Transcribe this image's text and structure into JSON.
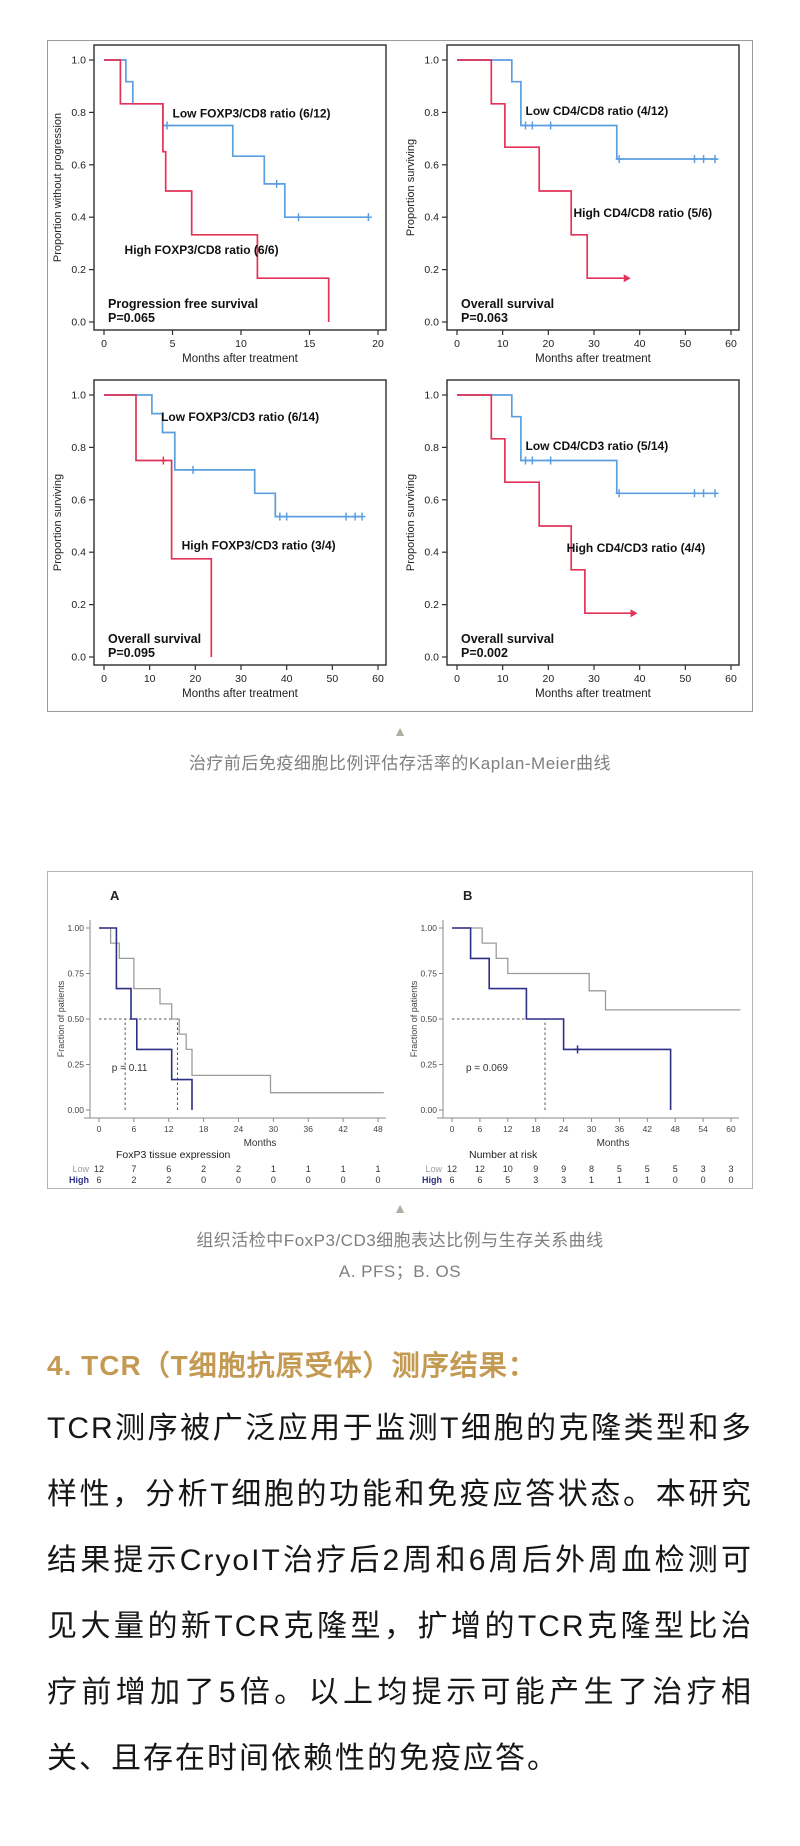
{
  "colors": {
    "blue": "#5b9fe0",
    "red": "#e23358",
    "navy": "#2d2f86",
    "gray": "#9c9c9c",
    "accent_gold": "#c49a53",
    "caption_gray": "#7f7f7f"
  },
  "icons": {
    "figure_marker": "▲"
  },
  "figure1": {
    "caption": "治疗前后免疫细胞比例评估存活率的Kaplan-Meier曲线"
  },
  "figure2": {
    "caption_line1": "组织活检中FoxP3/CD3细胞表达比例与生存关系曲线",
    "caption_line2": "A. PFS；B. OS"
  },
  "section": {
    "heading": "4. TCR（T细胞抗原受体）测序结果：",
    "paragraph": "TCR测序被广泛应用于监测T细胞的克隆类型和多样性，分析T细胞的功能和免疫应答状态。本研究结果提示CryoIT治疗后2周和6周后外周血检测可见大量的新TCR克隆型，扩增的TCR克隆型比治疗前增加了5倍。以上均提示可能产生了治疗相关、且存在时间依赖性的免疫应答。"
  },
  "chart_data": [
    {
      "id": "pfs-foxp3-cd8",
      "figure": 1,
      "type": "line",
      "ylabel": "Proportion without progression",
      "xlabel": "Months after treatment",
      "xmax": 21,
      "xticks": [
        0,
        5,
        10,
        15,
        20
      ],
      "yticks": [
        1.0,
        0.8,
        0.6,
        0.4,
        0.2,
        0.0
      ],
      "ydec": 1,
      "note": [
        "Progression free survival",
        "P=0.065"
      ],
      "series": [
        {
          "label": "Low FOXP3/CD8 ratio (6/12)",
          "color": "blue",
          "label_at": [
            5.0,
            0.78
          ],
          "steps": [
            [
              0,
              1
            ],
            [
              1.6,
              1
            ],
            [
              1.6,
              0.917
            ],
            [
              2.1,
              0.917
            ],
            [
              2.1,
              0.833
            ],
            [
              4.3,
              0.833
            ],
            [
              4.3,
              0.75
            ],
            [
              9.4,
              0.75
            ],
            [
              9.4,
              0.633
            ],
            [
              11.7,
              0.633
            ],
            [
              11.7,
              0.527
            ],
            [
              13.2,
              0.527
            ],
            [
              13.2,
              0.4
            ],
            [
              19.3,
              0.4
            ]
          ],
          "censors": [
            [
              4.6,
              0.75
            ],
            [
              12.6,
              0.527
            ],
            [
              14.2,
              0.4
            ],
            [
              19.3,
              0.4
            ]
          ]
        },
        {
          "label": "High FOXP3/CD8 ratio (6/6)",
          "color": "red",
          "label_at": [
            1.5,
            0.26
          ],
          "steps": [
            [
              0,
              1
            ],
            [
              1.2,
              1
            ],
            [
              1.2,
              0.833
            ],
            [
              4.3,
              0.833
            ],
            [
              4.3,
              0.65
            ],
            [
              4.5,
              0.65
            ],
            [
              4.5,
              0.5
            ],
            [
              6.4,
              0.5
            ],
            [
              6.4,
              0.333
            ],
            [
              11.2,
              0.333
            ],
            [
              11.2,
              0.167
            ],
            [
              16.4,
              0.167
            ],
            [
              16.4,
              0
            ]
          ],
          "censors": []
        }
      ]
    },
    {
      "id": "os-cd4-cd8",
      "figure": 1,
      "type": "line",
      "ylabel": "Proportion surviving",
      "xlabel": "Months after treatment",
      "xmax": 62,
      "xticks": [
        0,
        10,
        20,
        30,
        40,
        50,
        60
      ],
      "yticks": [
        1.0,
        0.8,
        0.6,
        0.4,
        0.2,
        0.0
      ],
      "ydec": 1,
      "note": [
        "Overall survival",
        "P=0.063"
      ],
      "series": [
        {
          "label": "Low CD4/CD8 ratio (4/12)",
          "color": "blue",
          "label_at": [
            15.0,
            0.79
          ],
          "steps": [
            [
              0,
              1
            ],
            [
              12,
              1
            ],
            [
              12,
              0.917
            ],
            [
              14,
              0.917
            ],
            [
              14,
              0.75
            ],
            [
              35,
              0.75
            ],
            [
              35,
              0.622
            ],
            [
              57,
              0.622
            ]
          ],
          "censors": [
            [
              15,
              0.75
            ],
            [
              16.5,
              0.75
            ],
            [
              20.5,
              0.75
            ],
            [
              35.5,
              0.622
            ],
            [
              52,
              0.622
            ],
            [
              54,
              0.622
            ],
            [
              56.5,
              0.622
            ]
          ]
        },
        {
          "label": "High CD4/CD8 ratio (5/6)",
          "color": "red",
          "label_at": [
            25.5,
            0.4
          ],
          "steps": [
            [
              0,
              1
            ],
            [
              7.5,
              1
            ],
            [
              7.5,
              0.833
            ],
            [
              10.5,
              0.833
            ],
            [
              10.5,
              0.667
            ],
            [
              18,
              0.667
            ],
            [
              18,
              0.5
            ],
            [
              25,
              0.5
            ],
            [
              25,
              0.333
            ],
            [
              28.5,
              0.333
            ],
            [
              28.5,
              0.167
            ],
            [
              36.5,
              0.167
            ]
          ],
          "censors": [],
          "end_arrow": true
        }
      ]
    },
    {
      "id": "os-foxp3-cd3",
      "figure": 1,
      "type": "line",
      "ylabel": "Proportion surviving",
      "xlabel": "Months after treatment",
      "xmax": 62,
      "xticks": [
        0,
        10,
        20,
        30,
        40,
        50,
        60
      ],
      "yticks": [
        1.0,
        0.8,
        0.6,
        0.4,
        0.2,
        0.0
      ],
      "ydec": 1,
      "note": [
        "Overall survival",
        "P=0.095"
      ],
      "series": [
        {
          "label": "Low FOXP3/CD3 ratio (6/14)",
          "color": "blue",
          "label_at": [
            12.5,
            0.9
          ],
          "steps": [
            [
              0,
              1
            ],
            [
              10.5,
              1
            ],
            [
              10.5,
              0.929
            ],
            [
              12.8,
              0.929
            ],
            [
              12.8,
              0.857
            ],
            [
              15.5,
              0.857
            ],
            [
              15.5,
              0.714
            ],
            [
              33,
              0.714
            ],
            [
              33,
              0.625
            ],
            [
              37.5,
              0.625
            ],
            [
              37.5,
              0.536
            ],
            [
              56.5,
              0.536
            ]
          ],
          "censors": [
            [
              19.5,
              0.714
            ],
            [
              38.5,
              0.536
            ],
            [
              40,
              0.536
            ],
            [
              53,
              0.536
            ],
            [
              55,
              0.536
            ],
            [
              56.5,
              0.536
            ]
          ]
        },
        {
          "label": "High FOXP3/CD3 ratio (3/4)",
          "color": "red",
          "label_at": [
            17.0,
            0.41
          ],
          "steps": [
            [
              0,
              1
            ],
            [
              7,
              1
            ],
            [
              7,
              0.75
            ],
            [
              14.8,
              0.75
            ],
            [
              14.8,
              0.375
            ],
            [
              23.5,
              0.375
            ],
            [
              23.5,
              0
            ]
          ],
          "censors": [
            [
              13,
              0.75
            ]
          ]
        }
      ]
    },
    {
      "id": "os-cd4-cd3",
      "figure": 1,
      "type": "line",
      "ylabel": "Proportion surviving",
      "xlabel": "Months after treatment",
      "xmax": 62,
      "xticks": [
        0,
        10,
        20,
        30,
        40,
        50,
        60
      ],
      "yticks": [
        1.0,
        0.8,
        0.6,
        0.4,
        0.2,
        0.0
      ],
      "ydec": 1,
      "note": [
        "Overall survival",
        "P=0.002"
      ],
      "series": [
        {
          "label": "Low CD4/CD3 ratio (5/14)",
          "color": "blue",
          "label_at": [
            15.0,
            0.79
          ],
          "steps": [
            [
              0,
              1
            ],
            [
              12,
              1
            ],
            [
              12,
              0.917
            ],
            [
              14,
              0.917
            ],
            [
              14,
              0.75
            ],
            [
              35,
              0.75
            ],
            [
              35,
              0.625
            ],
            [
              57,
              0.625
            ]
          ],
          "censors": [
            [
              15,
              0.75
            ],
            [
              16.5,
              0.75
            ],
            [
              20.5,
              0.75
            ],
            [
              35.5,
              0.625
            ],
            [
              52,
              0.625
            ],
            [
              54,
              0.625
            ],
            [
              56.5,
              0.625
            ]
          ]
        },
        {
          "label": "High CD4/CD3 ratio (4/4)",
          "color": "red",
          "label_at": [
            24.0,
            0.4
          ],
          "steps": [
            [
              0,
              1
            ],
            [
              7.5,
              1
            ],
            [
              7.5,
              0.833
            ],
            [
              10.5,
              0.833
            ],
            [
              10.5,
              0.667
            ],
            [
              18,
              0.667
            ],
            [
              18,
              0.5
            ],
            [
              25,
              0.5
            ],
            [
              25,
              0.333
            ],
            [
              28,
              0.333
            ],
            [
              28,
              0.167
            ],
            [
              38,
              0.167
            ]
          ],
          "censors": [],
          "end_arrow": true
        }
      ]
    },
    {
      "id": "pfs-foxp3-tissue",
      "figure": 2,
      "type": "line",
      "panel_label": "A",
      "ylabel": "Fraction of patients",
      "xlabel": "Months",
      "xmax": 49,
      "xticks": [
        0,
        6,
        12,
        18,
        24,
        30,
        36,
        42,
        48
      ],
      "yticks": [
        1.0,
        0.75,
        0.5,
        0.25,
        0.0
      ],
      "ydec": 2,
      "pvalue": "p = 0.11",
      "pvalue_at": [
        2.2,
        0.215
      ],
      "dashed": [
        {
          "type": "h",
          "y": 0.5,
          "x1": 0,
          "x2": 13.5
        },
        {
          "type": "v",
          "x": 4.5,
          "y2": 0.5
        },
        {
          "type": "v",
          "x": 13.5,
          "y2": 0.5
        }
      ],
      "series": [
        {
          "label": "Low",
          "color": "gray",
          "steps": [
            [
              0,
              1
            ],
            [
              2,
              1
            ],
            [
              2,
              0.917
            ],
            [
              3.5,
              0.917
            ],
            [
              3.5,
              0.833
            ],
            [
              6,
              0.833
            ],
            [
              6,
              0.667
            ],
            [
              10.5,
              0.667
            ],
            [
              10.5,
              0.583
            ],
            [
              12.5,
              0.583
            ],
            [
              12.5,
              0.5
            ],
            [
              13.8,
              0.5
            ],
            [
              13.8,
              0.417
            ],
            [
              15,
              0.417
            ],
            [
              15,
              0.333
            ],
            [
              16,
              0.333
            ],
            [
              16,
              0.19
            ],
            [
              29.5,
              0.19
            ],
            [
              29.5,
              0.095
            ],
            [
              49,
              0.095
            ]
          ],
          "censors": []
        },
        {
          "label": "High",
          "color": "navy",
          "steps": [
            [
              0,
              1
            ],
            [
              3,
              1
            ],
            [
              3,
              0.667
            ],
            [
              5.5,
              0.667
            ],
            [
              5.5,
              0.5
            ],
            [
              6.5,
              0.5
            ],
            [
              6.5,
              0.333
            ],
            [
              12.5,
              0.333
            ],
            [
              12.5,
              0.167
            ],
            [
              16,
              0.167
            ],
            [
              16,
              0
            ]
          ],
          "censors": []
        }
      ],
      "risk_table": {
        "title": "FoxP3 tissue expression",
        "row_labels": [
          "Low",
          "High"
        ],
        "rows": [
          [
            12,
            7,
            6,
            2,
            2,
            1,
            1,
            1,
            1
          ],
          [
            6,
            2,
            2,
            0,
            0,
            0,
            0,
            0,
            0
          ]
        ]
      }
    },
    {
      "id": "os-foxp3-tissue",
      "figure": 2,
      "type": "line",
      "panel_label": "B",
      "ylabel": "Fraction of patients",
      "xlabel": "Months",
      "xmax": 62,
      "xticks": [
        0,
        6,
        12,
        18,
        24,
        30,
        36,
        42,
        48,
        54,
        60
      ],
      "yticks": [
        1.0,
        0.75,
        0.5,
        0.25,
        0.0
      ],
      "ydec": 2,
      "pvalue": "p = 0.069",
      "pvalue_at": [
        3.0,
        0.215
      ],
      "dashed": [
        {
          "type": "h",
          "y": 0.5,
          "x1": 0,
          "x2": 20
        },
        {
          "type": "v",
          "x": 20,
          "y2": 0.5
        }
      ],
      "series": [
        {
          "label": "Low",
          "color": "gray",
          "steps": [
            [
              0,
              1
            ],
            [
              6.5,
              1
            ],
            [
              6.5,
              0.917
            ],
            [
              9.5,
              0.917
            ],
            [
              9.5,
              0.833
            ],
            [
              12,
              0.833
            ],
            [
              12,
              0.75
            ],
            [
              29.5,
              0.75
            ],
            [
              29.5,
              0.655
            ],
            [
              33,
              0.655
            ],
            [
              33,
              0.55
            ],
            [
              62,
              0.55
            ]
          ],
          "censors": []
        },
        {
          "label": "High",
          "color": "navy",
          "steps": [
            [
              0,
              1
            ],
            [
              4,
              1
            ],
            [
              4,
              0.833
            ],
            [
              8,
              0.833
            ],
            [
              8,
              0.667
            ],
            [
              16,
              0.667
            ],
            [
              16,
              0.5
            ],
            [
              24,
              0.5
            ],
            [
              24,
              0.333
            ],
            [
              47,
              0.333
            ],
            [
              47,
              0
            ]
          ],
          "censors": [
            [
              27,
              0.333
            ]
          ]
        }
      ],
      "risk_table": {
        "title": "Number at risk",
        "row_labels": [
          "Low",
          "High"
        ],
        "rows": [
          [
            12,
            12,
            10,
            9,
            9,
            8,
            5,
            5,
            5,
            3,
            3
          ],
          [
            6,
            6,
            5,
            3,
            3,
            1,
            1,
            1,
            0,
            0,
            0
          ]
        ]
      }
    }
  ]
}
